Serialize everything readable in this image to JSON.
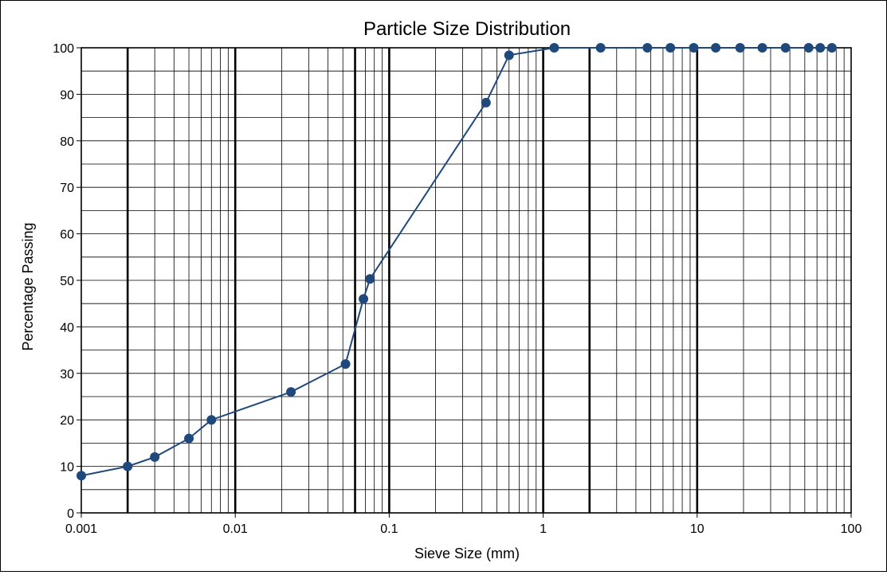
{
  "chart_data": {
    "type": "scatter",
    "title": "Particle Size Distribution",
    "xlabel": "Sieve Size (mm)",
    "ylabel": "Percentage Passing",
    "x_scale": "log",
    "xlim": [
      0.001,
      100
    ],
    "ylim": [
      0,
      100
    ],
    "x_tick_labels": [
      "0.001",
      "0.01",
      "0.1",
      "1",
      "10",
      "100"
    ],
    "y_tick_labels": [
      "0",
      "10",
      "20",
      "30",
      "40",
      "50",
      "60",
      "70",
      "80",
      "90",
      "100"
    ],
    "grid": true,
    "emphasized_gridlines_x": [
      0.002,
      0.01,
      0.06,
      0.1,
      1,
      2,
      10
    ],
    "line_color": "#1f497d",
    "marker_color": "#1f497d",
    "series": [
      {
        "x": [
          0.001,
          0.002,
          0.003,
          0.005,
          0.007,
          0.023,
          0.052,
          0.068,
          0.075,
          0.425,
          0.6,
          1.18,
          2.36,
          4.75,
          6.7,
          9.5,
          13.2,
          19,
          26.5,
          37.5,
          53,
          63,
          75
        ],
        "y": [
          8,
          10,
          12,
          16,
          20,
          26,
          32,
          46,
          50.3,
          88.2,
          98.4,
          100,
          100,
          100,
          100,
          100,
          100,
          100,
          100,
          100,
          100,
          100,
          100
        ]
      }
    ]
  }
}
